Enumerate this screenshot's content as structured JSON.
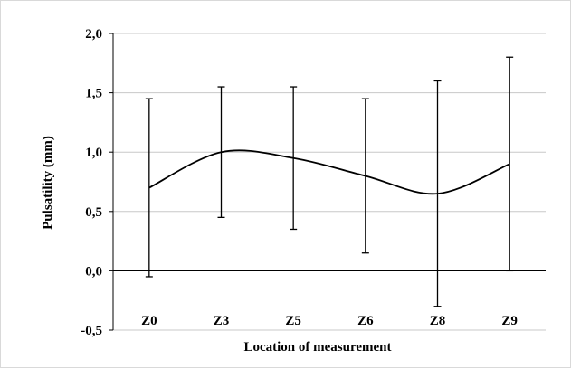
{
  "chart_data": {
    "type": "line",
    "title": "",
    "xlabel": "Location of measurement",
    "ylabel": "Pulsatility (mm)",
    "categories": [
      "Z0",
      "Z3",
      "Z5",
      "Z6",
      "Z8",
      "Z9"
    ],
    "series": [
      {
        "values": [
          0.7,
          1.0,
          0.95,
          0.8,
          0.65,
          0.9
        ],
        "error_low": [
          -0.05,
          0.45,
          0.35,
          0.15,
          -0.3,
          0.0
        ],
        "error_high": [
          1.45,
          1.55,
          1.55,
          1.45,
          1.6,
          1.8
        ]
      }
    ],
    "ylim": [
      -0.5,
      2.0
    ],
    "yticks": [
      -0.5,
      0.0,
      0.5,
      1.0,
      1.5,
      2.0
    ],
    "ytick_labels": [
      "-0,5",
      "0,0",
      "0,5",
      "1,0",
      "1,5",
      "2,0"
    ],
    "grid": true,
    "smooth": true,
    "colors": {
      "line": "#000000",
      "grid": "#c8c8c8",
      "axis": "#000000"
    }
  }
}
